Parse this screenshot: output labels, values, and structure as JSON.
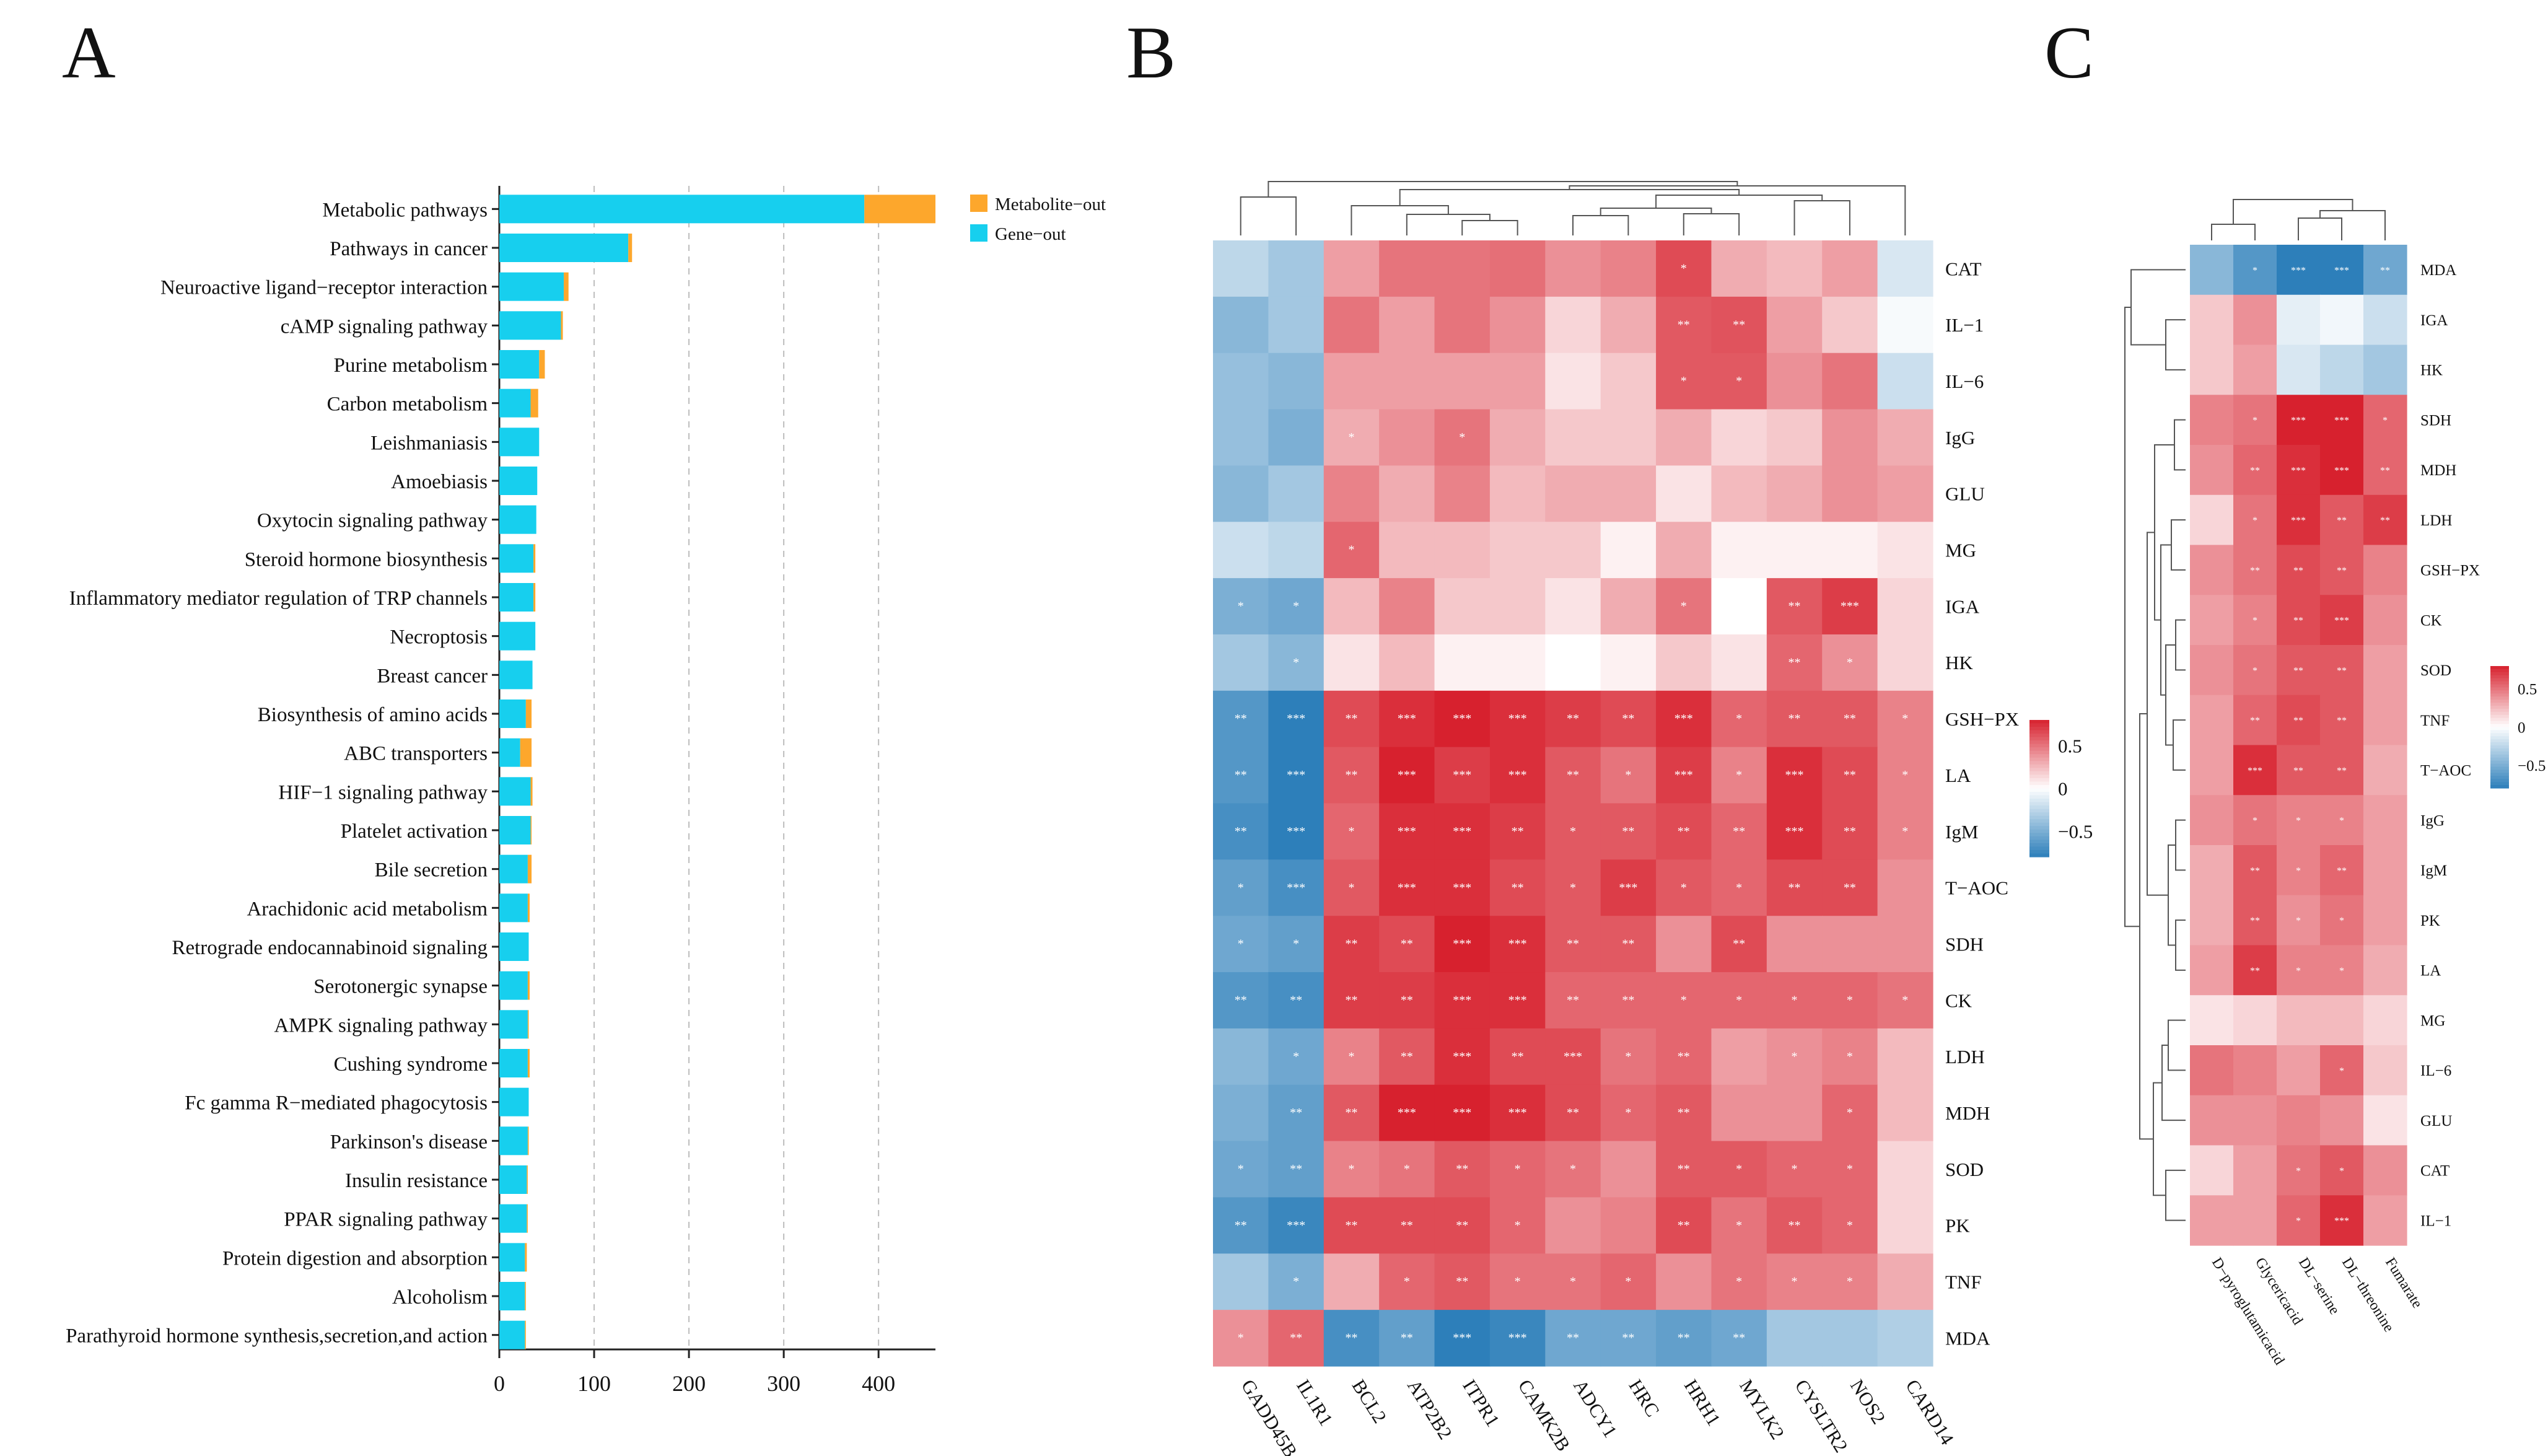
{
  "colors": {
    "gene": "#17cfee",
    "metabolite": "#fda72c",
    "heat_low": "#2d7fba",
    "heat_mid": "#ffffff",
    "heat_high": "#d7212e"
  },
  "chart_data": [
    {
      "panel": "A",
      "type": "bar",
      "orientation": "horizontal",
      "stacked": true,
      "categories": [
        "Metabolic pathways",
        "Pathways in cancer",
        "Neuroactive ligand−receptor interaction",
        "cAMP signaling pathway",
        "Purine metabolism",
        "Carbon metabolism",
        "Leishmaniasis",
        "Amoebiasis",
        "Oxytocin signaling pathway",
        "Steroid hormone biosynthesis",
        "Inflammatory mediator regulation of TRP channels",
        "Necroptosis",
        "Breast cancer",
        "Biosynthesis of amino acids",
        "ABC transporters",
        "HIF−1 signaling pathway",
        "Platelet activation",
        "Bile secretion",
        "Arachidonic acid metabolism",
        "Retrograde endocannabinoid signaling",
        "Serotonergic synapse",
        "AMPK signaling pathway",
        "Cushing syndrome",
        "Fc gamma R−mediated phagocytosis",
        "Parkinson's disease",
        "Insulin resistance",
        "PPAR signaling pathway",
        "Protein digestion and absorption",
        "Alcoholism",
        "Parathyroid hormone synthesis,secretion,and action"
      ],
      "series": [
        {
          "name": "Gene−out",
          "values": [
            385,
            136,
            68,
            65,
            42,
            33,
            42,
            40,
            39,
            36,
            36,
            38,
            35,
            28,
            22,
            33,
            33,
            30,
            30,
            31,
            30,
            30,
            30,
            31,
            30,
            29,
            29,
            27,
            27,
            27
          ]
        },
        {
          "name": "Metabolite−out",
          "values": [
            75,
            4,
            5,
            2,
            6,
            8,
            0,
            0,
            0,
            2,
            2,
            0,
            0,
            6,
            12,
            2,
            1,
            4,
            2,
            0,
            2,
            1,
            2,
            0,
            1,
            1,
            1,
            2,
            1,
            1
          ]
        }
      ],
      "legend": [
        "Metabolite−out",
        "Gene−out"
      ],
      "x_ticks": [
        "0",
        "100",
        "200",
        "300",
        "400"
      ],
      "xlim": [
        0,
        460
      ],
      "grid": true
    },
    {
      "panel": "B",
      "type": "heatmap",
      "columns": [
        "GADD45B",
        "IL1R1",
        "BCL2",
        "ATP2B2",
        "ITPR1",
        "CAMK2B",
        "ADCY1",
        "HRC",
        "HRH1",
        "MYLK2",
        "CYSLTR2",
        "NOS2",
        "CARD14"
      ],
      "rows": [
        "CAT",
        "IL−1",
        "IL−6",
        "IgG",
        "GLU",
        "MG",
        "IGA",
        "HK",
        "GSH−PX",
        "LA",
        "IgM",
        "T−AOC",
        "SDH",
        "CK",
        "LDH",
        "MDH",
        "SOD",
        "PK",
        "TNF",
        "MDA"
      ],
      "values": [
        [
          -0.25,
          -0.35,
          0.35,
          0.5,
          0.5,
          0.52,
          0.4,
          0.45,
          0.65,
          0.3,
          0.25,
          0.35,
          -0.15
        ],
        [
          -0.45,
          -0.35,
          0.5,
          0.35,
          0.5,
          0.4,
          0.15,
          0.3,
          0.6,
          0.62,
          0.35,
          0.2,
          -0.03
        ],
        [
          -0.4,
          -0.45,
          0.35,
          0.35,
          0.35,
          0.35,
          0.1,
          0.2,
          0.6,
          0.6,
          0.4,
          0.5,
          -0.2
        ],
        [
          -0.4,
          -0.5,
          0.3,
          0.4,
          0.5,
          0.3,
          0.2,
          0.2,
          0.3,
          0.15,
          0.2,
          0.4,
          0.3
        ],
        [
          -0.45,
          -0.35,
          0.45,
          0.3,
          0.45,
          0.25,
          0.3,
          0.3,
          0.1,
          0.25,
          0.3,
          0.4,
          0.35
        ],
        [
          -0.2,
          -0.25,
          0.55,
          0.25,
          0.25,
          0.2,
          0.2,
          0.05,
          0.3,
          0.05,
          0.05,
          0.05,
          0.1
        ],
        [
          -0.5,
          -0.55,
          0.25,
          0.45,
          0.2,
          0.2,
          0.1,
          0.3,
          0.5,
          0.0,
          0.6,
          0.7,
          0.15
        ],
        [
          -0.35,
          -0.45,
          0.1,
          0.25,
          0.05,
          0.05,
          0.0,
          0.05,
          0.2,
          0.1,
          0.55,
          0.4,
          0.15
        ],
        [
          -0.65,
          -0.8,
          0.65,
          0.75,
          0.8,
          0.75,
          0.7,
          0.65,
          0.75,
          0.55,
          0.6,
          0.6,
          0.45
        ],
        [
          -0.65,
          -0.85,
          0.6,
          0.85,
          0.7,
          0.75,
          0.6,
          0.5,
          0.7,
          0.45,
          0.75,
          0.65,
          0.45
        ],
        [
          -0.7,
          -0.8,
          0.55,
          0.75,
          0.75,
          0.7,
          0.6,
          0.6,
          0.65,
          0.55,
          0.75,
          0.65,
          0.45
        ],
        [
          -0.6,
          -0.7,
          0.6,
          0.75,
          0.75,
          0.65,
          0.6,
          0.7,
          0.6,
          0.55,
          0.65,
          0.65,
          0.4
        ],
        [
          -0.55,
          -0.6,
          0.7,
          0.65,
          0.8,
          0.75,
          0.6,
          0.6,
          0.4,
          0.65,
          0.4,
          0.4,
          0.4
        ],
        [
          -0.65,
          -0.7,
          0.7,
          0.7,
          0.75,
          0.75,
          0.55,
          0.55,
          0.55,
          0.55,
          0.55,
          0.55,
          0.5
        ],
        [
          -0.45,
          -0.55,
          0.45,
          0.6,
          0.75,
          0.65,
          0.65,
          0.5,
          0.55,
          0.35,
          0.4,
          0.45,
          0.25
        ],
        [
          -0.5,
          -0.6,
          0.6,
          0.8,
          0.85,
          0.75,
          0.65,
          0.55,
          0.6,
          0.4,
          0.4,
          0.55,
          0.25
        ],
        [
          -0.55,
          -0.6,
          0.45,
          0.5,
          0.6,
          0.55,
          0.5,
          0.4,
          0.6,
          0.6,
          0.55,
          0.55,
          0.15
        ],
        [
          -0.65,
          -0.75,
          0.65,
          0.65,
          0.65,
          0.55,
          0.4,
          0.45,
          0.65,
          0.5,
          0.6,
          0.55,
          0.15
        ],
        [
          -0.35,
          -0.5,
          0.3,
          0.55,
          0.6,
          0.5,
          0.5,
          0.55,
          0.4,
          0.5,
          0.45,
          0.45,
          0.3
        ],
        [
          0.4,
          0.55,
          -0.7,
          -0.6,
          -0.85,
          -0.75,
          -0.55,
          -0.55,
          -0.6,
          -0.55,
          -0.35,
          -0.35,
          -0.3
        ]
      ],
      "legend_ticks": [
        "0.5",
        "0",
        "−0.5"
      ],
      "value_range": [
        -0.8,
        0.8
      ]
    },
    {
      "panel": "C",
      "type": "heatmap",
      "columns": [
        "D−pyroglutamicacid",
        "Glycericacid",
        "DL−serine",
        "DL−threonine",
        "Fumarate"
      ],
      "rows": [
        "MDA",
        "IGA",
        "HK",
        "SDH",
        "MDH",
        "LDH",
        "GSH−PX",
        "CK",
        "SOD",
        "TNF",
        "T−AOC",
        "IgG",
        "IgM",
        "PK",
        "LA",
        "MG",
        "IL−6",
        "GLU",
        "CAT",
        "IL−1"
      ],
      "values": [
        [
          -0.45,
          -0.65,
          -0.85,
          -0.85,
          -0.55
        ],
        [
          0.2,
          0.4,
          -0.1,
          -0.05,
          -0.2
        ],
        [
          0.2,
          0.35,
          -0.15,
          -0.25,
          -0.35
        ],
        [
          0.45,
          0.5,
          0.8,
          0.85,
          0.55
        ],
        [
          0.4,
          0.55,
          0.75,
          0.8,
          0.55
        ],
        [
          0.15,
          0.5,
          0.75,
          0.6,
          0.7
        ],
        [
          0.4,
          0.5,
          0.65,
          0.6,
          0.45
        ],
        [
          0.35,
          0.45,
          0.65,
          0.7,
          0.4
        ],
        [
          0.4,
          0.5,
          0.6,
          0.6,
          0.35
        ],
        [
          0.35,
          0.55,
          0.65,
          0.6,
          0.35
        ],
        [
          0.35,
          0.75,
          0.6,
          0.6,
          0.3
        ],
        [
          0.4,
          0.5,
          0.45,
          0.45,
          0.35
        ],
        [
          0.3,
          0.6,
          0.45,
          0.55,
          0.35
        ],
        [
          0.3,
          0.6,
          0.4,
          0.5,
          0.35
        ],
        [
          0.35,
          0.7,
          0.45,
          0.45,
          0.3
        ],
        [
          0.1,
          0.15,
          0.25,
          0.25,
          0.15
        ],
        [
          0.5,
          0.45,
          0.35,
          0.55,
          0.2
        ],
        [
          0.4,
          0.4,
          0.45,
          0.4,
          0.1
        ],
        [
          0.15,
          0.35,
          0.5,
          0.6,
          0.4
        ],
        [
          0.35,
          0.35,
          0.55,
          0.75,
          0.35
        ]
      ],
      "legend_ticks": [
        "0.5",
        "0",
        "−0.5"
      ],
      "value_range": [
        -0.8,
        0.8
      ]
    }
  ],
  "panels": {
    "a": "A",
    "b": "B",
    "c": "C"
  },
  "significance": {
    "B": [
      [
        "",
        "",
        "",
        "",
        "",
        "",
        "",
        "",
        "*",
        "",
        "",
        "",
        ""
      ],
      [
        "",
        "",
        "",
        "",
        "",
        "",
        "",
        "",
        "**",
        "**",
        "",
        "",
        ""
      ],
      [
        "",
        "",
        "",
        "",
        "",
        "",
        "",
        "",
        "*",
        "*",
        "",
        "",
        ""
      ],
      [
        "",
        "",
        "*",
        "",
        "*",
        "",
        "",
        "",
        "",
        "",
        "",
        "",
        ""
      ],
      [
        "",
        "",
        "",
        "",
        "",
        "",
        "",
        "",
        "",
        "",
        "",
        "",
        ""
      ],
      [
        "",
        "",
        "*",
        "",
        "",
        "",
        "",
        "",
        "",
        "",
        "",
        "",
        ""
      ],
      [
        "*",
        "*",
        "",
        "",
        "",
        "",
        "",
        "",
        "*",
        "",
        "**",
        "***",
        ""
      ],
      [
        "",
        "*",
        "",
        "",
        "",
        "",
        "",
        "",
        "",
        "",
        "**",
        "*",
        ""
      ],
      [
        "**",
        "***",
        "**",
        "***",
        "***",
        "***",
        "**",
        "**",
        "***",
        "*",
        "**",
        "**",
        "*"
      ],
      [
        "**",
        "***",
        "**",
        "***",
        "***",
        "***",
        "**",
        "*",
        "***",
        "*",
        "***",
        "**",
        "*"
      ],
      [
        "**",
        "***",
        "*",
        "***",
        "***",
        "**",
        "*",
        "**",
        "**",
        "**",
        "***",
        "**",
        "*"
      ],
      [
        "*",
        "***",
        "*",
        "***",
        "***",
        "**",
        "*",
        "***",
        "*",
        "*",
        "**",
        "**",
        ""
      ],
      [
        "*",
        "*",
        "**",
        "**",
        "***",
        "***",
        "**",
        "**",
        "",
        "**",
        "",
        "",
        ""
      ],
      [
        "**",
        "**",
        "**",
        "**",
        "***",
        "***",
        "**",
        "**",
        "*",
        "*",
        "*",
        "*",
        "*"
      ],
      [
        "",
        "*",
        "*",
        "**",
        "***",
        "**",
        "***",
        "*",
        "**",
        "",
        "*",
        "*",
        ""
      ],
      [
        "",
        "**",
        "**",
        "***",
        "***",
        "***",
        "**",
        "*",
        "**",
        "",
        "",
        "*",
        ""
      ],
      [
        "*",
        "**",
        "*",
        "*",
        "**",
        "*",
        "*",
        "",
        "**",
        "*",
        "*",
        "*",
        ""
      ],
      [
        "**",
        "***",
        "**",
        "**",
        "**",
        "*",
        "",
        "",
        "**",
        "*",
        "**",
        "*",
        ""
      ],
      [
        "",
        "*",
        "",
        "*",
        "**",
        "*",
        "*",
        "*",
        "",
        "*",
        "*",
        "*",
        ""
      ],
      [
        "*",
        "**",
        "**",
        "**",
        "***",
        "***",
        "**",
        "**",
        "**",
        "**",
        "",
        "",
        ""
      ]
    ],
    "C": [
      [
        "",
        "*",
        "***",
        "***",
        "**"
      ],
      [
        "",
        "",
        "",
        "",
        ""
      ],
      [
        "",
        "",
        "",
        "",
        ""
      ],
      [
        "",
        "*",
        "***",
        "***",
        "*"
      ],
      [
        "",
        "**",
        "***",
        "***",
        "**"
      ],
      [
        "",
        "*",
        "***",
        "**",
        "**"
      ],
      [
        "",
        "**",
        "**",
        "**",
        ""
      ],
      [
        "",
        "*",
        "**",
        "***",
        ""
      ],
      [
        "",
        "*",
        "**",
        "**",
        ""
      ],
      [
        "",
        "**",
        "**",
        "**",
        ""
      ],
      [
        "",
        "***",
        "**",
        "**",
        ""
      ],
      [
        "",
        "*",
        "*",
        "*",
        ""
      ],
      [
        "",
        "**",
        "*",
        "**",
        ""
      ],
      [
        "",
        "**",
        "*",
        "*",
        ""
      ],
      [
        "",
        "**",
        "*",
        "*",
        ""
      ],
      [
        "",
        "",
        "",
        "",
        ""
      ],
      [
        "",
        "",
        "",
        "*",
        ""
      ],
      [
        "",
        "",
        "",
        "",
        ""
      ],
      [
        "",
        "",
        "*",
        "*",
        ""
      ],
      [
        "",
        "",
        "*",
        "***",
        ""
      ]
    ]
  }
}
